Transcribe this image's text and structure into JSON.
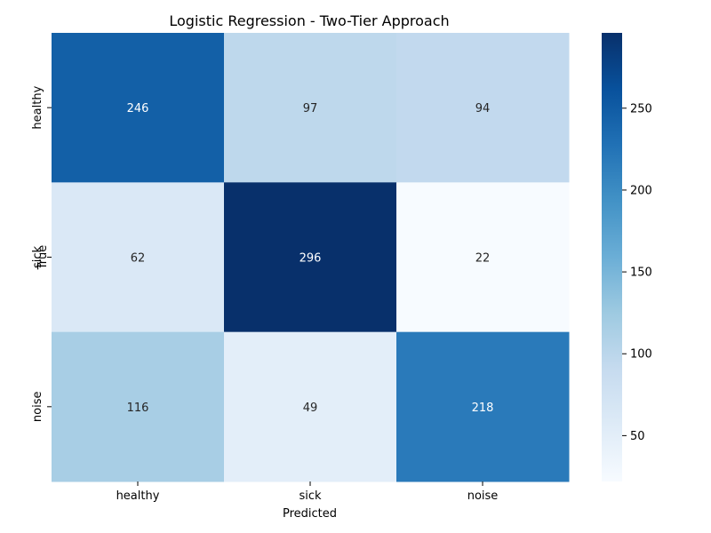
{
  "chart_data": {
    "type": "heatmap",
    "title": "Logistic Regression - Two-Tier Approach",
    "xlabel": "Predicted",
    "ylabel": "True",
    "x_categories": [
      "healthy",
      "sick",
      "noise"
    ],
    "y_categories": [
      "healthy",
      "sick",
      "noise"
    ],
    "values": [
      [
        246,
        97,
        94
      ],
      [
        62,
        296,
        22
      ],
      [
        116,
        49,
        218
      ]
    ],
    "colorbar": {
      "min": 22,
      "max": 296,
      "ticks": [
        50,
        100,
        150,
        200,
        250
      ]
    },
    "colormap": [
      "#f7fbff",
      "#deebf7",
      "#c6dbef",
      "#9ecae1",
      "#6baed6",
      "#4292c6",
      "#2171b5",
      "#08519c",
      "#08306b"
    ]
  }
}
